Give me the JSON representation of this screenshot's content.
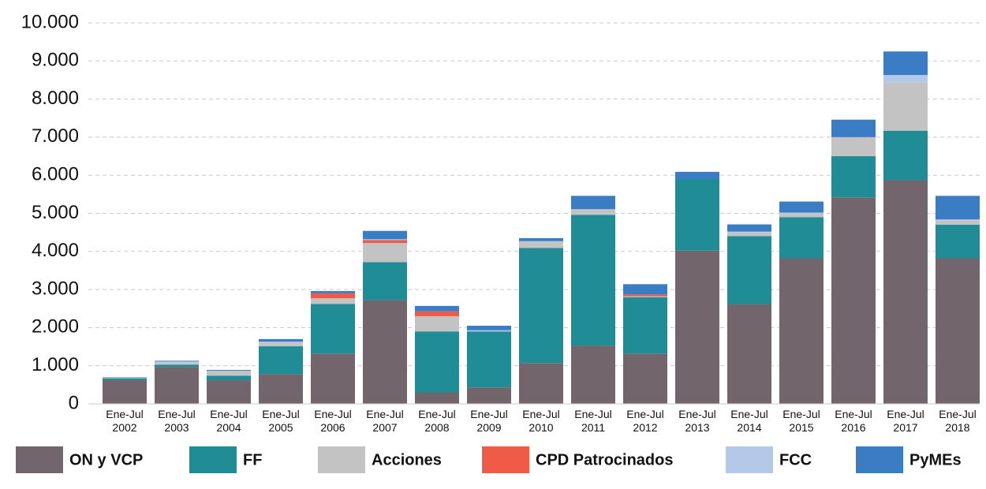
{
  "chart_data": {
    "type": "stacked_bar",
    "categories": [
      "Ene-Jul 2002",
      "Ene-Jul 2003",
      "Ene-Jul 2004",
      "Ene-Jul 2005",
      "Ene-Jul 2006",
      "Ene-Jul 2007",
      "Ene-Jul 2008",
      "Ene-Jul 2009",
      "Ene-Jul 2010",
      "Ene-Jul 2011",
      "Ene-Jul 2012",
      "Ene-Jul 2013",
      "Ene-Jul 2014",
      "Ene-Jul 2015",
      "Ene-Jul 2016",
      "Ene-Jul 2017",
      "Ene-Jul 2018"
    ],
    "series": [
      {
        "name": "ON y VCP",
        "color": "#73656c",
        "values": [
          620,
          970,
          620,
          780,
          1320,
          2720,
          300,
          430,
          1070,
          1530,
          1320,
          4020,
          2620,
          3820,
          5420,
          5870,
          3820
        ]
      },
      {
        "name": "FF",
        "color": "#1f8c96",
        "values": [
          50,
          60,
          120,
          730,
          1300,
          1000,
          1600,
          1470,
          3020,
          3430,
          1480,
          1880,
          1780,
          1080,
          1080,
          1300,
          880
        ]
      },
      {
        "name": "Acciones",
        "color": "#c3c3c3",
        "values": [
          20,
          50,
          130,
          100,
          150,
          500,
          400,
          0,
          180,
          150,
          20,
          0,
          100,
          100,
          500,
          1260,
          120
        ]
      },
      {
        "name": "CPD Patrocinados",
        "color": "#ef5b47",
        "values": [
          0,
          0,
          0,
          0,
          130,
          80,
          130,
          0,
          0,
          0,
          50,
          0,
          0,
          0,
          0,
          0,
          0
        ]
      },
      {
        "name": "FCC",
        "color": "#b4c9e8",
        "values": [
          0,
          30,
          0,
          20,
          0,
          20,
          0,
          30,
          0,
          0,
          0,
          0,
          20,
          20,
          0,
          200,
          20
        ]
      },
      {
        "name": "PyMEs",
        "color": "#3b7dc4",
        "values": [
          10,
          20,
          20,
          70,
          60,
          220,
          140,
          120,
          80,
          350,
          270,
          190,
          190,
          290,
          460,
          620,
          620
        ]
      }
    ],
    "ylim": [
      0,
      10000
    ],
    "yticks": [
      0,
      {
        "value": 1000,
        "label": "1.000"
      },
      {
        "value": 2000,
        "label": "2.000"
      },
      {
        "value": 3000,
        "label": "3.000"
      },
      {
        "value": 4000,
        "label": "4.000"
      },
      {
        "value": 5000,
        "label": "5.000"
      },
      {
        "value": 6000,
        "label": "6.000"
      },
      {
        "value": 7000,
        "label": "7.000"
      },
      {
        "value": 8000,
        "label": "8.000"
      },
      {
        "value": 9000,
        "label": "9.000"
      },
      {
        "value": 10000,
        "label": "10.000"
      }
    ],
    "grid": true,
    "legend": "bottom"
  }
}
